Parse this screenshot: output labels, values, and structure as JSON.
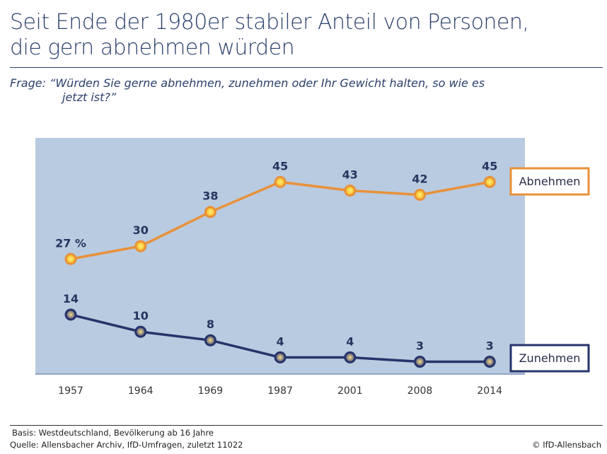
{
  "title_line1": "Seit Ende der 1980er stabiler Anteil von Personen,",
  "title_line2": "die gern abnehmen würden",
  "question_line1": "Frage:  “Würden Sie gerne abnehmen, zunehmen oder Ihr Gewicht halten, so wie es",
  "question_line2": "jetzt ist?”",
  "footer": {
    "basis": "Basis: Westdeutschland, Bevölkerung ab 16 Jahre",
    "source": "Quelle: Allensbacher Archiv, IfD-Umfragen, zuletzt 11022",
    "copyright": "© IfD-Allensbach"
  },
  "colors": {
    "panel": "#b9cbe0",
    "abnehmen": "#e8913a",
    "zunehmen": "#27336b",
    "text": "#24365f"
  },
  "chart_data": {
    "type": "line",
    "categories": [
      "1957",
      "1964",
      "1969",
      "1987",
      "2001",
      "2008",
      "2014"
    ],
    "ylim": [
      0,
      50
    ],
    "grid": false,
    "series": [
      {
        "name": "Abnehmen",
        "values": [
          27,
          30,
          38,
          45,
          43,
          42,
          45
        ],
        "labels": [
          "27 %",
          "30",
          "38",
          "45",
          "43",
          "42",
          "45"
        ]
      },
      {
        "name": "Zunehmen",
        "values": [
          14,
          10,
          8,
          4,
          4,
          3,
          3
        ],
        "labels": [
          "14",
          "10",
          "8",
          "4",
          "4",
          "3",
          "3"
        ]
      }
    ],
    "legend": "right"
  }
}
